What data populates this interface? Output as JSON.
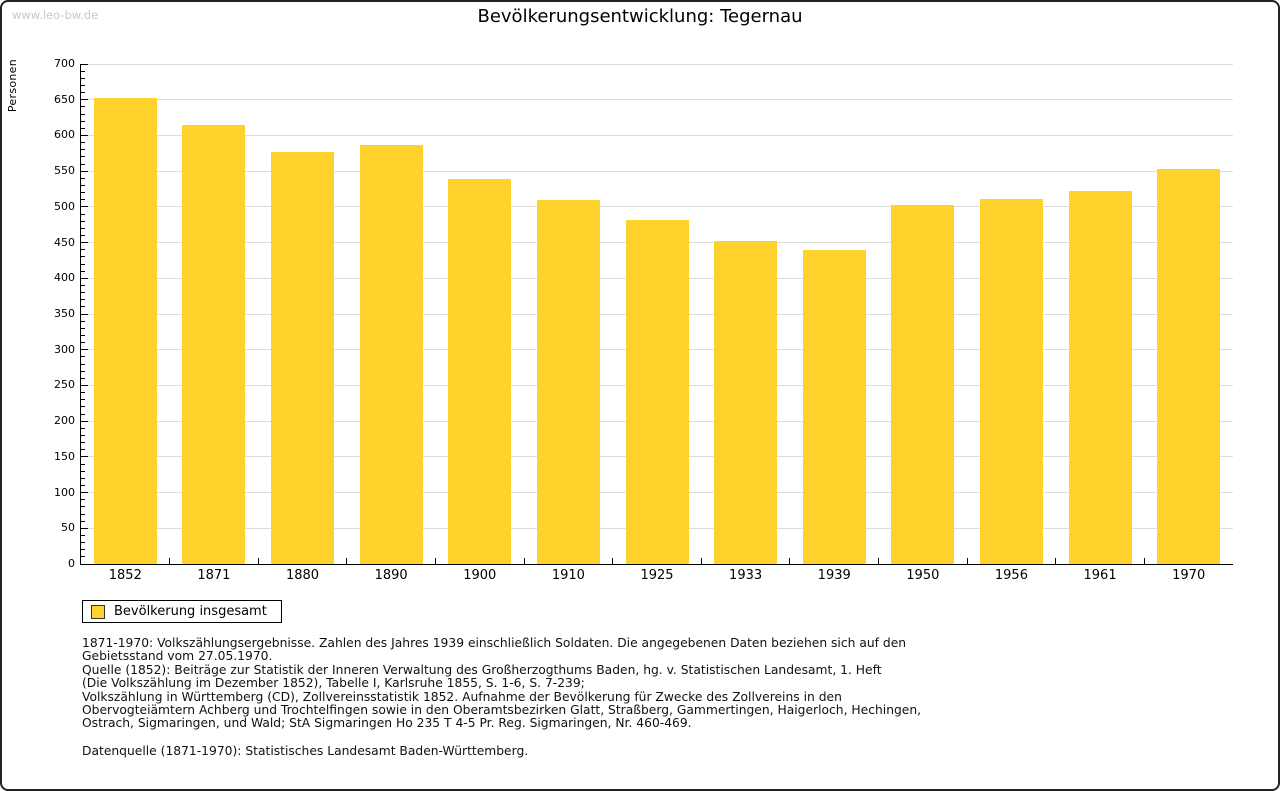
{
  "watermark": "www.leo-bw.de",
  "header": {
    "title": "Bevölkerungsentwicklung: Tegernau"
  },
  "legend": {
    "label": "Bevölkerung insgesamt",
    "swatch_color": "#FCD22B"
  },
  "chart_data": {
    "type": "bar",
    "title": "Bevölkerungsentwicklung: Tegernau",
    "xlabel": "",
    "ylabel": "Personen",
    "categories": [
      "1852",
      "1871",
      "1880",
      "1890",
      "1900",
      "1910",
      "1925",
      "1933",
      "1939",
      "1950",
      "1956",
      "1961",
      "1970"
    ],
    "values": [
      653,
      615,
      577,
      587,
      539,
      510,
      482,
      452,
      440,
      503,
      511,
      522,
      553
    ],
    "series_name": "Bevölkerung insgesamt",
    "ylim": [
      0,
      700
    ],
    "ytick_step": 50,
    "yminor_step": 10,
    "bar_color": "#FCD22B",
    "grid": true,
    "legend_position": "bottom-left"
  },
  "notes": {
    "lines": [
      "1871-1970: Volkszählungsergebnisse. Zahlen des Jahres 1939 einschließlich Soldaten. Die angegebenen Daten beziehen sich auf den",
      "Gebietsstand vom 27.05.1970.",
      "Quelle (1852): Beiträge zur Statistik der Inneren Verwaltung des Großherzogthums Baden, hg. v. Statistischen Landesamt, 1. Heft",
      "(Die Volkszählung im Dezember 1852), Tabelle I, Karlsruhe 1855, S. 1-6, S. 7-239;",
      "Volkszählung in Württemberg (CD), Zollvereinsstatistik 1852. Aufnahme der Bevölkerung für Zwecke des Zollvereins in den",
      "Obervogteiämtern Achberg und Trochtelfingen sowie in den Oberamtsbezirken Glatt, Straßberg, Gammertingen, Haigerloch, Hechingen,",
      "Ostrach, Sigmaringen, und Wald; StA Sigmaringen Ho 235 T 4-5 Pr. Reg. Sigmaringen, Nr. 460-469."
    ],
    "datasource": "Datenquelle (1871-1970): Statistisches Landesamt Baden-Württemberg."
  }
}
